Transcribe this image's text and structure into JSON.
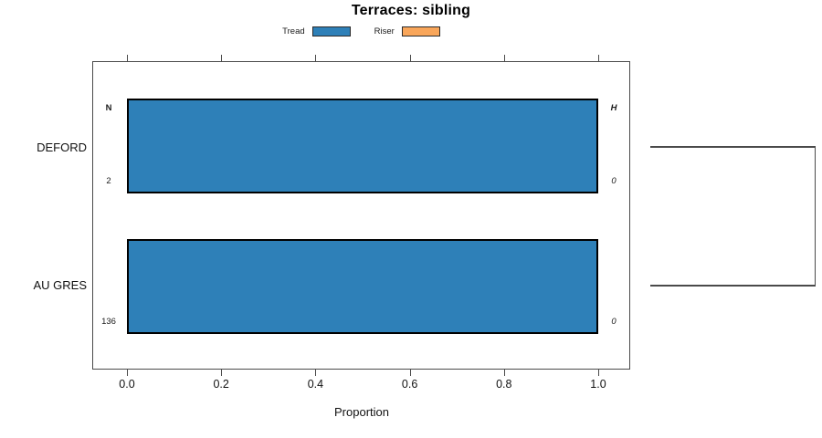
{
  "title": "Terraces: sibling",
  "legend": {
    "items": [
      {
        "label": "Tread",
        "color": "#2E80B8"
      },
      {
        "label": "Riser",
        "color": "#F9A65A"
      }
    ]
  },
  "chart_data": {
    "type": "bar",
    "orientation": "horizontal",
    "title": "Terraces: sibling",
    "xlabel": "Proportion",
    "xlim": [
      0,
      1
    ],
    "x_ticks": [
      "0.0",
      "0.2",
      "0.4",
      "0.6",
      "0.8",
      "1.0"
    ],
    "grid": false,
    "legend_position": "top-center",
    "categories": [
      "DEFORD",
      "AU GRES"
    ],
    "series": [
      {
        "name": "Tread",
        "color": "#2E80B8",
        "values": [
          1.0,
          1.0
        ]
      },
      {
        "name": "Riser",
        "color": "#F9A65A",
        "values": [
          0.0,
          0.0
        ]
      }
    ],
    "annotations": {
      "left_header": "N",
      "right_header": "H",
      "rows": [
        {
          "category": "DEFORD",
          "n": "2",
          "h": "0"
        },
        {
          "category": "AU GRES",
          "n": "136",
          "h": "0"
        }
      ]
    },
    "right_bracket_dendrogram": true
  }
}
